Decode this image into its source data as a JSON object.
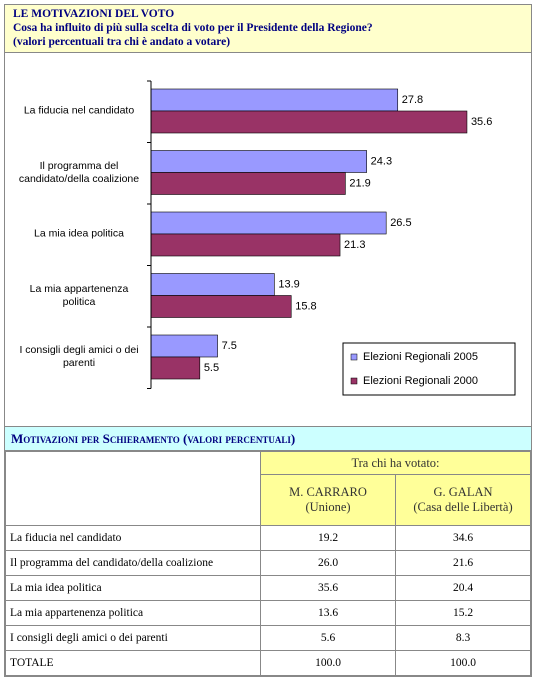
{
  "header": {
    "title": "LE MOTIVAZIONI DEL VOTO",
    "question": "Cosa ha influito di più sulla scelta di voto  per il Presidente della Regione?",
    "note": "(valori percentuali tra chi è andato a votare)"
  },
  "chart_data": {
    "type": "hbar",
    "categories": [
      "La fiducia nel candidato",
      "Il programma del candidato/della coalizione",
      "La mia idea politica",
      "La mia appartenenza politica",
      "I consigli degli amici o dei parenti"
    ],
    "series": [
      {
        "name": "Elezioni Regionali 2005",
        "color": "#9999ff",
        "values": [
          27.8,
          24.3,
          26.5,
          13.9,
          7.5
        ]
      },
      {
        "name": "Elezioni Regionali 2000",
        "color": "#993366",
        "values": [
          35.6,
          21.9,
          21.3,
          15.8,
          5.5
        ]
      }
    ],
    "xlim": [
      0,
      40
    ],
    "legend": "bottom-right"
  },
  "table": {
    "title": "Motivazioni per Schieramento (valori percentuali)",
    "group_header": "Tra chi ha votato:",
    "columns": [
      {
        "name": "M. CARRARO",
        "party": "(Unione)"
      },
      {
        "name": "G. GALAN",
        "party": "(Casa delle Libertà)"
      }
    ],
    "rows": [
      [
        "La fiducia nel candidato",
        "19.2",
        "34.6"
      ],
      [
        "Il programma del candidato/della coalizione",
        "26.0",
        "21.6"
      ],
      [
        "La mia idea politica",
        "35.6",
        "20.4"
      ],
      [
        "La mia appartenenza politica",
        "13.6",
        "15.2"
      ],
      [
        "I consigli degli amici o dei parenti",
        "5.6",
        "8.3"
      ],
      [
        "TOTALE",
        "100.0",
        "100.0"
      ]
    ]
  }
}
